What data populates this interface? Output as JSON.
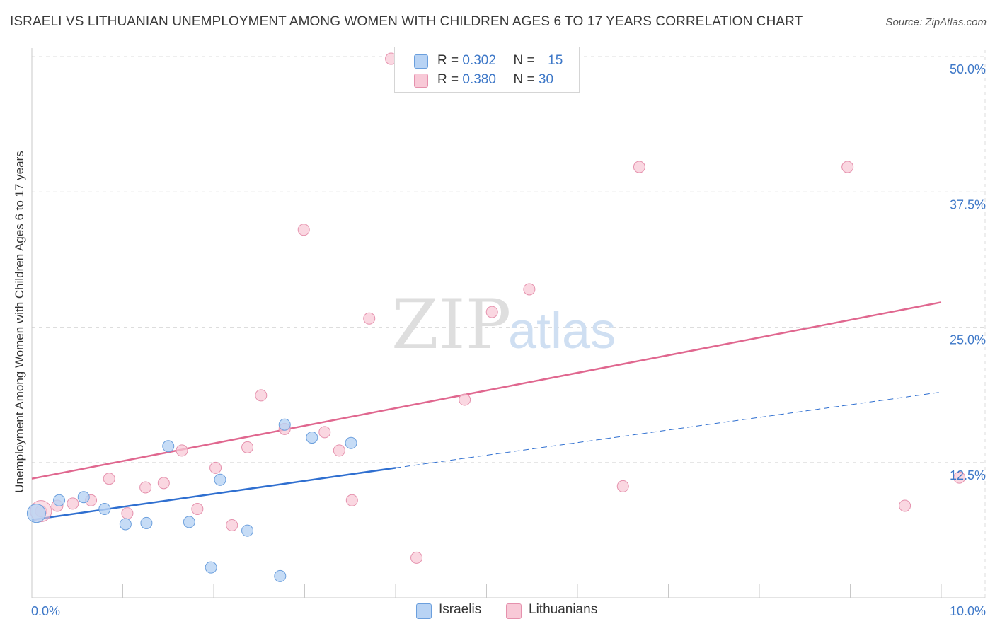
{
  "title": "ISRAELI VS LITHUANIAN UNEMPLOYMENT AMONG WOMEN WITH CHILDREN AGES 6 TO 17 YEARS CORRELATION CHART",
  "source": "Source: ZipAtlas.com",
  "legend": [
    {
      "r_label": "R =",
      "r": "0.302",
      "n_label": "N =",
      "n": "15"
    },
    {
      "r_label": "R =",
      "r": "0.380",
      "n_label": "N =",
      "n": "30"
    }
  ],
  "colors": {
    "israelis_fill": "#b8d3f4",
    "israelis_stroke": "#6b9fdd",
    "israelis_line": "#2f6fd0",
    "lithuanians_fill": "#f8c9d7",
    "lithuanians_stroke": "#e591ad",
    "lithuanians_line": "#e0678f",
    "axis_text": "#3e78c8",
    "grid": "#dddddd"
  },
  "chart_data": {
    "type": "scatter",
    "title": "ISRAELI VS LITHUANIAN UNEMPLOYMENT AMONG WOMEN WITH CHILDREN AGES 6 TO 17 YEARS CORRELATION CHART",
    "xlabel": "",
    "ylabel": "Unemployment Among Women with Children Ages 6 to 17 years",
    "xlim": [
      0,
      10
    ],
    "ylim": [
      0,
      50
    ],
    "x_tick_labels": [
      "0.0%",
      "10.0%"
    ],
    "y_ticks": [
      12.5,
      25.0,
      37.5,
      50.0
    ],
    "y_tick_labels": [
      "12.5%",
      "25.0%",
      "37.5%",
      "50.0%"
    ],
    "watermark": "ZIPatlas",
    "series": [
      {
        "name": "Israelis",
        "r": 0.302,
        "n": 15,
        "points": [
          [
            0.05,
            7.8
          ],
          [
            0.3,
            9.0
          ],
          [
            0.57,
            9.3
          ],
          [
            0.8,
            8.2
          ],
          [
            1.03,
            6.8
          ],
          [
            1.26,
            6.9
          ],
          [
            1.5,
            14.0
          ],
          [
            1.73,
            7.0
          ],
          [
            1.97,
            2.8
          ],
          [
            2.07,
            10.9
          ],
          [
            2.37,
            6.2
          ],
          [
            2.73,
            2.0
          ],
          [
            2.78,
            16.0
          ],
          [
            3.08,
            14.8
          ],
          [
            3.51,
            14.3
          ]
        ],
        "trend_solid": [
          [
            0,
            7.2
          ],
          [
            4.0,
            12.0
          ]
        ],
        "trend_dashed": [
          [
            4.0,
            12.0
          ],
          [
            10.0,
            19.0
          ]
        ]
      },
      {
        "name": "Lithuanians",
        "r": 0.38,
        "n": 30,
        "points": [
          [
            0.1,
            8.0
          ],
          [
            0.28,
            8.5
          ],
          [
            0.45,
            8.7
          ],
          [
            0.65,
            9.0
          ],
          [
            0.85,
            11.0
          ],
          [
            1.05,
            7.8
          ],
          [
            1.25,
            10.2
          ],
          [
            1.45,
            10.6
          ],
          [
            1.65,
            13.6
          ],
          [
            1.82,
            8.2
          ],
          [
            2.02,
            12.0
          ],
          [
            2.2,
            6.7
          ],
          [
            2.37,
            13.9
          ],
          [
            2.52,
            18.7
          ],
          [
            2.78,
            15.6
          ],
          [
            2.99,
            34.0
          ],
          [
            3.22,
            15.3
          ],
          [
            3.38,
            13.6
          ],
          [
            3.52,
            9.0
          ],
          [
            3.71,
            25.8
          ],
          [
            3.95,
            49.8
          ],
          [
            4.23,
            3.7
          ],
          [
            4.76,
            18.3
          ],
          [
            5.06,
            26.4
          ],
          [
            5.47,
            28.5
          ],
          [
            6.5,
            10.3
          ],
          [
            6.68,
            39.8
          ],
          [
            8.97,
            39.8
          ],
          [
            9.6,
            8.5
          ],
          [
            10.2,
            11.1
          ]
        ],
        "trend": [
          [
            0,
            11.0
          ],
          [
            10.0,
            27.3
          ]
        ]
      }
    ]
  },
  "bottom_legend": {
    "israelis": "Israelis",
    "lithuanians": "Lithuanians"
  }
}
